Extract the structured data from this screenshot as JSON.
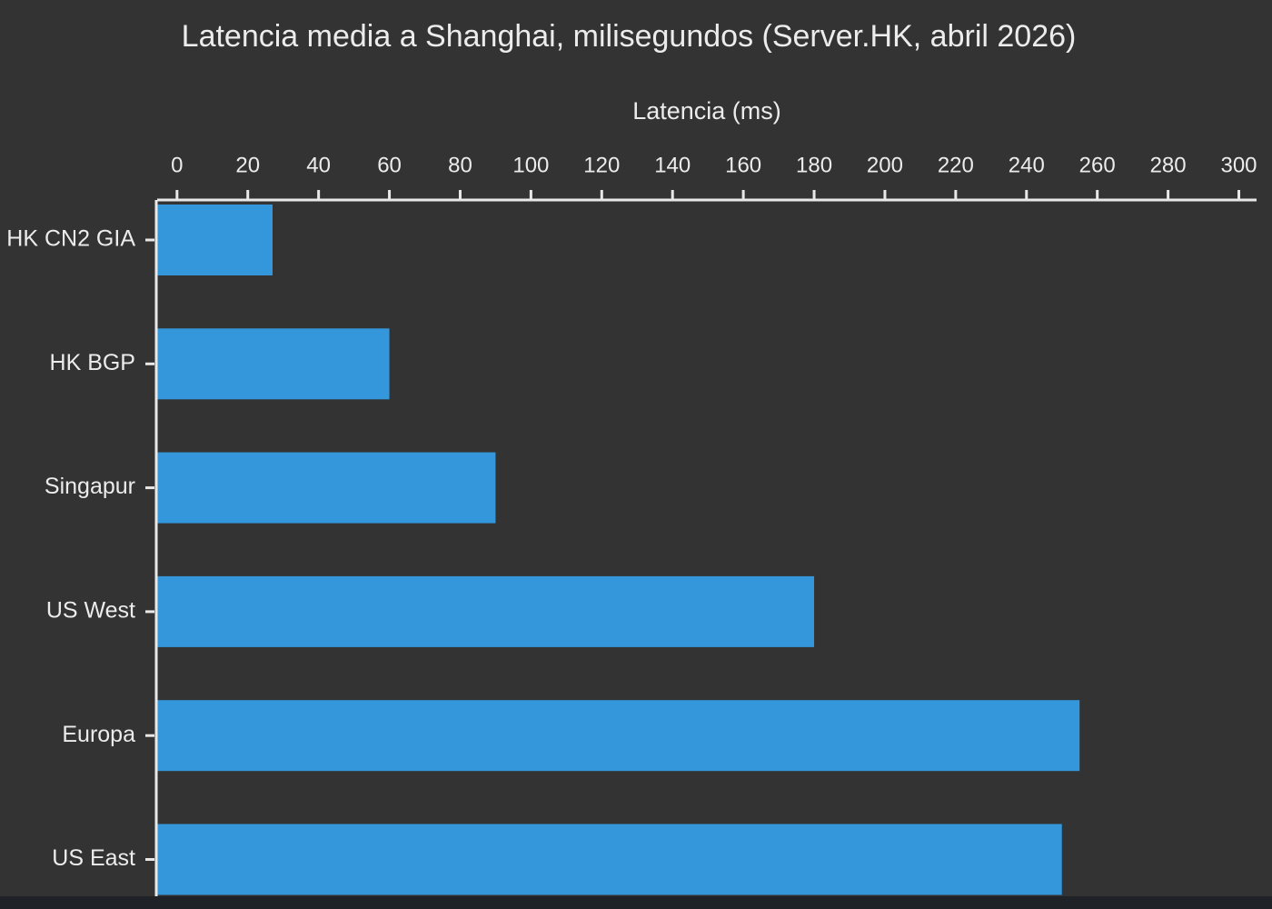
{
  "chart_data": {
    "type": "bar",
    "orientation": "horizontal",
    "title": "Latencia media a Shanghai, milisegundos (Server.HK, abril 2026)",
    "x_label": "Latencia (ms)",
    "categories": [
      "HK CN2 GIA",
      "HK BGP",
      "Singapur",
      "US West",
      "Europa",
      "US East"
    ],
    "values": [
      27,
      60,
      90,
      180,
      255,
      250
    ],
    "color": "#3497db",
    "xlim": [
      -5.6,
      305
    ],
    "xticks": [
      0,
      20,
      40,
      60,
      80,
      100,
      120,
      140,
      160,
      180,
      200,
      220,
      240,
      260,
      280,
      300
    ],
    "grid": false
  }
}
